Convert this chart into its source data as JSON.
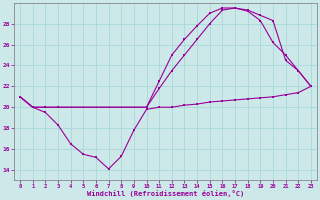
{
  "xlabel": "Windchill (Refroidissement éolien,°C)",
  "background_color": "#cce8e8",
  "grid_color": "#a8d8d8",
  "line_color": "#990099",
  "xlim": [
    -0.5,
    23.5
  ],
  "ylim": [
    13.0,
    30.0
  ],
  "yticks": [
    14,
    16,
    18,
    20,
    22,
    24,
    26,
    28
  ],
  "xticks": [
    0,
    1,
    2,
    3,
    4,
    5,
    6,
    7,
    8,
    9,
    10,
    11,
    12,
    13,
    14,
    15,
    16,
    17,
    18,
    19,
    20,
    21,
    22,
    23
  ],
  "series1_x": [
    0,
    1,
    2,
    3,
    4,
    5,
    6,
    7,
    8,
    9,
    10,
    11,
    12,
    13,
    14,
    15,
    16,
    17,
    18,
    19,
    20,
    21,
    22,
    23
  ],
  "series1_y": [
    21.0,
    20.0,
    19.5,
    18.3,
    16.5,
    15.5,
    15.2,
    14.1,
    15.3,
    17.8,
    19.8,
    20.0,
    20.0,
    20.2,
    20.3,
    20.5,
    20.6,
    20.7,
    20.8,
    20.9,
    21.0,
    21.2,
    21.4,
    22.0
  ],
  "series2_x": [
    0,
    1,
    2,
    3,
    10,
    11,
    12,
    13,
    14,
    15,
    16,
    17,
    18,
    19,
    20,
    21,
    22,
    23
  ],
  "series2_y": [
    21.0,
    20.0,
    20.0,
    20.0,
    20.0,
    21.8,
    23.5,
    25.0,
    26.5,
    28.0,
    29.3,
    29.5,
    29.2,
    28.3,
    26.2,
    25.0,
    23.5,
    22.0
  ],
  "series3_x": [
    0,
    1,
    2,
    3,
    10,
    11,
    12,
    13,
    14,
    15,
    16,
    17,
    18,
    19,
    20,
    21,
    22,
    23
  ],
  "series3_y": [
    21.0,
    20.0,
    20.0,
    20.0,
    20.0,
    22.5,
    25.0,
    26.5,
    27.8,
    29.0,
    29.5,
    29.5,
    29.3,
    28.8,
    28.3,
    24.5,
    23.5,
    22.0
  ]
}
